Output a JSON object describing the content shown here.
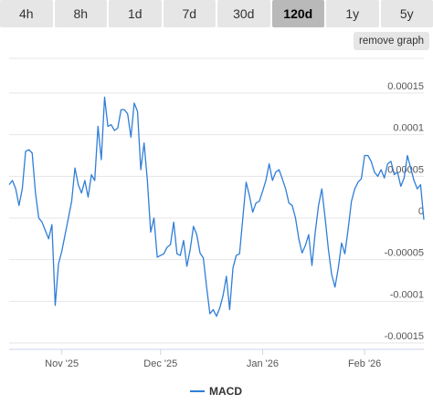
{
  "tabs": [
    {
      "label": "4h"
    },
    {
      "label": "8h"
    },
    {
      "label": "1d"
    },
    {
      "label": "7d"
    },
    {
      "label": "30d"
    },
    {
      "label": "120d",
      "active": true
    },
    {
      "label": "1y"
    },
    {
      "label": "5y"
    }
  ],
  "remove_graph_label": "remove graph",
  "colors": {
    "series": "#2f7ed8",
    "grid": "#e6e6e6"
  },
  "chart_data": {
    "type": "line",
    "ylim": [
      -0.00015,
      0.00015
    ],
    "yticks": [
      {
        "value": 0.00015,
        "label": "0.00015"
      },
      {
        "value": 0.0001,
        "label": "0.0001"
      },
      {
        "value": 5e-05,
        "label": "0.00005"
      },
      {
        "value": 0,
        "label": "0"
      },
      {
        "value": -5e-05,
        "label": "-0.00005"
      },
      {
        "value": -0.0001,
        "label": "-0.0001"
      },
      {
        "value": -0.00015,
        "label": "-0.00015"
      }
    ],
    "xlim": [
      "2025-10-16",
      "2026-02-19"
    ],
    "xticks": [
      {
        "date": "2025-11-01",
        "label": "Nov '25"
      },
      {
        "date": "2025-12-01",
        "label": "Dec '25"
      },
      {
        "date": "2026-01-01",
        "label": "Jan '26"
      },
      {
        "date": "2026-02-01",
        "label": "Feb '26"
      }
    ],
    "legend": "bottom-center",
    "series": [
      {
        "name": "MACD",
        "points": [
          [
            "2025-10-16",
            4e-05
          ],
          [
            "2025-10-17",
            4.5e-05
          ],
          [
            "2025-10-18",
            3.5e-05
          ],
          [
            "2025-10-19",
            1.5e-05
          ],
          [
            "2025-10-20",
            3.5e-05
          ],
          [
            "2025-10-21",
            8e-05
          ],
          [
            "2025-10-22",
            8.2e-05
          ],
          [
            "2025-10-23",
            7.8e-05
          ],
          [
            "2025-10-24",
            3e-05
          ],
          [
            "2025-10-25",
            0.0
          ],
          [
            "2025-10-26",
            -5e-06
          ],
          [
            "2025-10-27",
            -1.5e-05
          ],
          [
            "2025-10-28",
            -2.5e-05
          ],
          [
            "2025-10-29",
            -8e-06
          ],
          [
            "2025-10-30",
            -0.000105
          ],
          [
            "2025-10-31",
            -5.5e-05
          ],
          [
            "2025-11-01",
            -4e-05
          ],
          [
            "2025-11-02",
            -2e-05
          ],
          [
            "2025-11-03",
            0.0
          ],
          [
            "2025-11-04",
            2e-05
          ],
          [
            "2025-11-05",
            6e-05
          ],
          [
            "2025-11-06",
            4e-05
          ],
          [
            "2025-11-07",
            3e-05
          ],
          [
            "2025-11-08",
            4.5e-05
          ],
          [
            "2025-11-09",
            2.5e-05
          ],
          [
            "2025-11-10",
            5.2e-05
          ],
          [
            "2025-11-11",
            4.5e-05
          ],
          [
            "2025-11-12",
            0.00011
          ],
          [
            "2025-11-13",
            7e-05
          ],
          [
            "2025-11-14",
            0.000145
          ],
          [
            "2025-11-15",
            0.00011
          ],
          [
            "2025-11-16",
            0.000112
          ],
          [
            "2025-11-17",
            0.000105
          ],
          [
            "2025-11-18",
            0.000108
          ],
          [
            "2025-11-19",
            0.00013
          ],
          [
            "2025-11-20",
            0.00013
          ],
          [
            "2025-11-21",
            0.000125
          ],
          [
            "2025-11-22",
            9.7e-05
          ],
          [
            "2025-11-23",
            0.000138
          ],
          [
            "2025-11-24",
            0.000128
          ],
          [
            "2025-11-25",
            5.8e-05
          ],
          [
            "2025-11-26",
            9e-05
          ],
          [
            "2025-11-27",
            4.5e-05
          ],
          [
            "2025-11-28",
            -1.7e-05
          ],
          [
            "2025-11-29",
            0.0
          ],
          [
            "2025-11-30",
            -4.7e-05
          ],
          [
            "2025-12-01",
            -4.5e-05
          ],
          [
            "2025-12-02",
            -4.3e-05
          ],
          [
            "2025-12-03",
            -3.5e-05
          ],
          [
            "2025-12-04",
            -3.2e-05
          ],
          [
            "2025-12-05",
            -5e-06
          ],
          [
            "2025-12-06",
            -4.3e-05
          ],
          [
            "2025-12-07",
            -4.5e-05
          ],
          [
            "2025-12-08",
            -2.7e-05
          ],
          [
            "2025-12-09",
            -5.8e-05
          ],
          [
            "2025-12-10",
            -3.8e-05
          ],
          [
            "2025-12-11",
            -1e-05
          ],
          [
            "2025-12-12",
            -2e-05
          ],
          [
            "2025-12-13",
            -4.2e-05
          ],
          [
            "2025-12-14",
            -4.8e-05
          ],
          [
            "2025-12-15",
            -8.3e-05
          ],
          [
            "2025-12-16",
            -0.000115
          ],
          [
            "2025-12-17",
            -0.00011
          ],
          [
            "2025-12-18",
            -0.000118
          ],
          [
            "2025-12-19",
            -0.000108
          ],
          [
            "2025-12-20",
            -9.3e-05
          ],
          [
            "2025-12-21",
            -7e-05
          ],
          [
            "2025-12-22",
            -0.00011
          ],
          [
            "2025-12-23",
            -6e-05
          ],
          [
            "2025-12-24",
            -4.5e-05
          ],
          [
            "2025-12-25",
            -4.3e-05
          ],
          [
            "2025-12-26",
            0.0
          ],
          [
            "2025-12-27",
            4.3e-05
          ],
          [
            "2025-12-28",
            2.7e-05
          ],
          [
            "2025-12-29",
            7e-06
          ],
          [
            "2025-12-30",
            1.8e-05
          ],
          [
            "2025-12-31",
            2e-05
          ],
          [
            "2026-01-01",
            3.2e-05
          ],
          [
            "2026-01-02",
            4.5e-05
          ],
          [
            "2026-01-03",
            6.5e-05
          ],
          [
            "2026-01-04",
            4.5e-05
          ],
          [
            "2026-01-05",
            5.5e-05
          ],
          [
            "2026-01-06",
            5.8e-05
          ],
          [
            "2026-01-07",
            4.7e-05
          ],
          [
            "2026-01-08",
            3.5e-05
          ],
          [
            "2026-01-09",
            1.8e-05
          ],
          [
            "2026-01-10",
            1.5e-05
          ],
          [
            "2026-01-11",
            0.0
          ],
          [
            "2026-01-12",
            -2.5e-05
          ],
          [
            "2026-01-13",
            -4.2e-05
          ],
          [
            "2026-01-14",
            -3.3e-05
          ],
          [
            "2026-01-15",
            -2e-05
          ],
          [
            "2026-01-16",
            -5.7e-05
          ],
          [
            "2026-01-17",
            -1.7e-05
          ],
          [
            "2026-01-18",
            1.5e-05
          ],
          [
            "2026-01-19",
            3.5e-05
          ],
          [
            "2026-01-20",
            0.0
          ],
          [
            "2026-01-21",
            -3.8e-05
          ],
          [
            "2026-01-22",
            -6.8e-05
          ],
          [
            "2026-01-23",
            -8.3e-05
          ],
          [
            "2026-01-24",
            -6e-05
          ],
          [
            "2026-01-25",
            -3e-05
          ],
          [
            "2026-01-26",
            -4.3e-05
          ],
          [
            "2026-01-27",
            -1.3e-05
          ],
          [
            "2026-01-28",
            2e-05
          ],
          [
            "2026-01-29",
            3.5e-05
          ],
          [
            "2026-01-30",
            4.3e-05
          ],
          [
            "2026-01-31",
            4.7e-05
          ],
          [
            "2026-02-01",
            7.5e-05
          ],
          [
            "2026-02-02",
            7.5e-05
          ],
          [
            "2026-02-03",
            6.8e-05
          ],
          [
            "2026-02-04",
            5.5e-05
          ],
          [
            "2026-02-05",
            5e-05
          ],
          [
            "2026-02-06",
            5.8e-05
          ],
          [
            "2026-02-07",
            4.8e-05
          ],
          [
            "2026-02-08",
            6.5e-05
          ],
          [
            "2026-02-09",
            6.8e-05
          ],
          [
            "2026-02-10",
            5.2e-05
          ],
          [
            "2026-02-11",
            5.5e-05
          ],
          [
            "2026-02-12",
            3.8e-05
          ],
          [
            "2026-02-13",
            4.8e-05
          ],
          [
            "2026-02-14",
            7.5e-05
          ],
          [
            "2026-02-15",
            6e-05
          ],
          [
            "2026-02-16",
            4.5e-05
          ],
          [
            "2026-02-17",
            3.5e-05
          ],
          [
            "2026-02-18",
            4e-05
          ],
          [
            "2026-02-19",
            -2e-06
          ]
        ]
      }
    ]
  }
}
